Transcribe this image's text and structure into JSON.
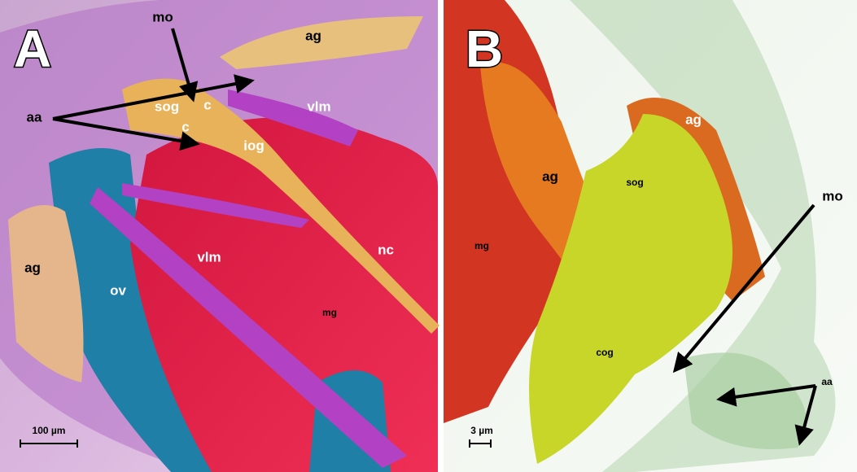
{
  "panels": [
    {
      "letter": "A",
      "labels": [
        "mo",
        "aa",
        "sog",
        "c",
        "c",
        "iog",
        "ag",
        "vlm",
        "ag",
        "ov",
        "vlm",
        "nc",
        "mg"
      ],
      "scale_bar": "100 µm"
    },
    {
      "letter": "B",
      "labels": [
        "ag",
        "ag",
        "sog",
        "mg",
        "mo",
        "cog",
        "aa"
      ],
      "scale_bar": "3 µm"
    }
  ]
}
